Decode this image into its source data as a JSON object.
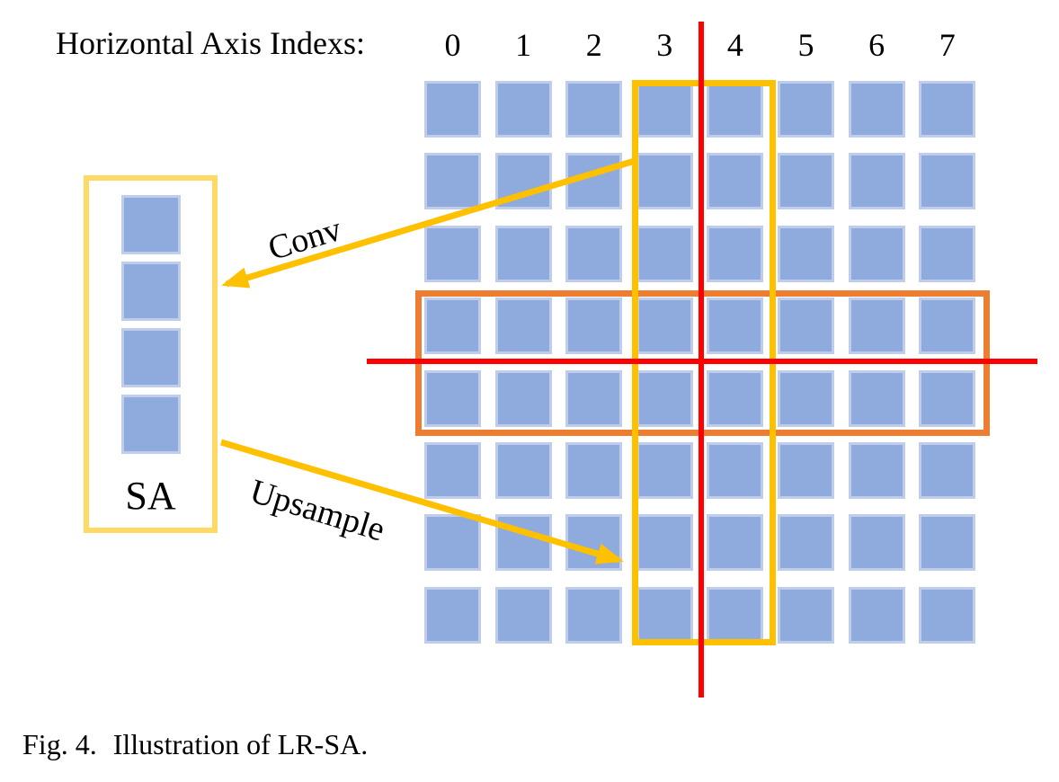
{
  "header": {
    "title": "Horizontal Axis Indexs:",
    "indices": [
      "0",
      "1",
      "2",
      "3",
      "4",
      "5",
      "6",
      "7"
    ]
  },
  "grid": {
    "rows": 8,
    "cols": 8
  },
  "sa": {
    "label": "SA",
    "square_count": 4
  },
  "labels": {
    "conv": "Conv",
    "upsample": "Upsample"
  },
  "caption": {
    "fig_label": "Fig. 4.",
    "text": "Illustration of LR-SA."
  },
  "colors": {
    "square_fill": "#8FAADC",
    "square_border": "#BFCCEA",
    "sa_box_border": "#FFD966",
    "col_box_border": "#FFC000",
    "row_box_border": "#ED7D31",
    "arrow": "#FFC000",
    "axis_line": "#FF0000"
  }
}
